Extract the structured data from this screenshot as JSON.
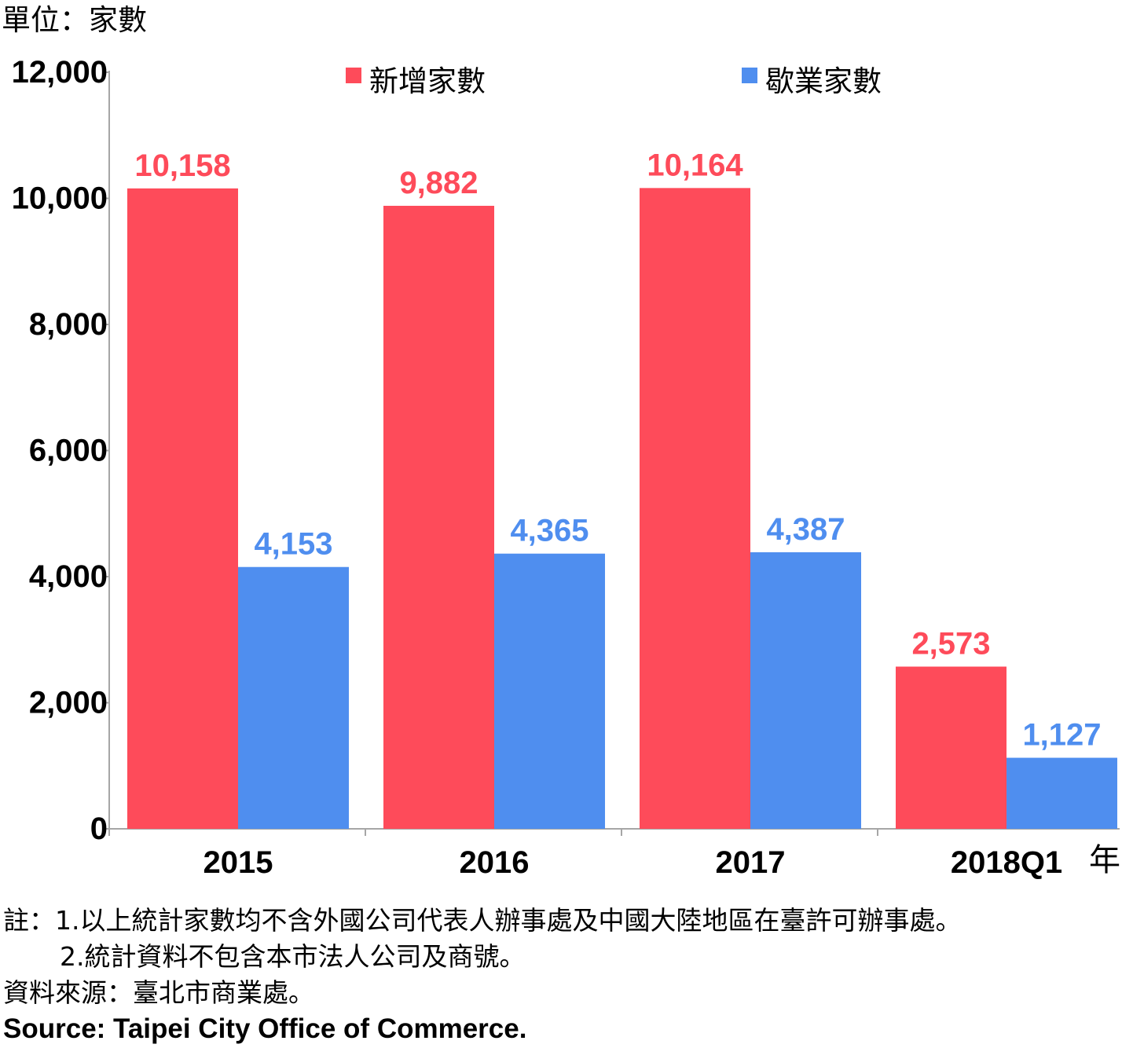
{
  "chart_data": {
    "type": "bar",
    "unit_label": "單位：家數",
    "x_unit_label": "年",
    "categories": [
      "2015",
      "2016",
      "2017",
      "2018Q1"
    ],
    "series": [
      {
        "name": "新增家數",
        "color": "#fe4b5a",
        "values": [
          10158,
          9882,
          10164,
          2573
        ],
        "labels": [
          "10,158",
          "9,882",
          "10,164",
          "2,573"
        ]
      },
      {
        "name": "歇業家數",
        "color": "#4f8eef",
        "values": [
          4153,
          4365,
          4387,
          1127
        ],
        "labels": [
          "4,153",
          "4,365",
          "4,387",
          "1,127"
        ]
      }
    ],
    "ylim": [
      0,
      12000
    ],
    "yticks": [
      0,
      2000,
      4000,
      6000,
      8000,
      10000,
      12000
    ],
    "ytick_labels": [
      "0",
      "2,000",
      "4,000",
      "6,000",
      "8,000",
      "10,000",
      "12,000"
    ],
    "grid": false,
    "legend_position": "top"
  },
  "notes": {
    "line1": "註：1.以上統計家數均不含外國公司代表人辦事處及中國大陸地區在臺許可辦事處。",
    "line2": "2.統計資料不包含本市法人公司及商號。",
    "source_zh": "資料來源：臺北市商業處。",
    "source_en": "Source: Taipei City Office of Commerce."
  }
}
